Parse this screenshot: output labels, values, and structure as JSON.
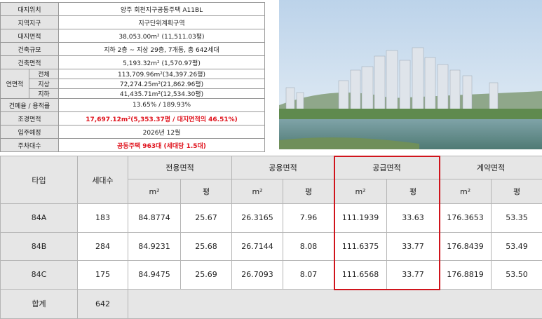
{
  "info": {
    "rows": [
      {
        "label": "대지위치",
        "value": "양주 회천지구공동주택 A11BL"
      },
      {
        "label": "지역지구",
        "value": "지구단위계획구역"
      },
      {
        "label": "대지면적",
        "value": "38,053.00m² (11,511.03평)"
      },
      {
        "label": "건축규모",
        "value": "지하 2층 ~ 지상 29층, 7개동, 총 642세대"
      },
      {
        "label": "건축면적",
        "value": "5,193.32m² (1,570.97평)"
      }
    ],
    "floor_area": {
      "label": "연면적",
      "rows": [
        {
          "label": "전체",
          "value": "113,709.96m²(34,397.26평)"
        },
        {
          "label": "지상",
          "value": "72,274.25m²(21,862.96평)"
        },
        {
          "label": "지하",
          "value": "41,435.71m²(12,534.30평)"
        }
      ]
    },
    "rows2": [
      {
        "label": "건폐율 / 용적률",
        "value": "13.65% / 189.93%"
      },
      {
        "label": "조경면적",
        "value": "17,697.12m²(5,353.37평 / 대지면적의 46.51%)"
      },
      {
        "label": "입주예정",
        "value": "2026년 12월"
      },
      {
        "label": "주차대수",
        "value": "공동주택 963대 (세대당 1.5대)"
      }
    ]
  },
  "table": {
    "header": {
      "type": "타입",
      "households": "세대수",
      "groups": [
        "전용면적",
        "공용면적",
        "공급면적",
        "계약면적"
      ],
      "units": [
        "m²",
        "평"
      ]
    },
    "rows": [
      [
        "84A",
        "183",
        "84.8774",
        "25.67",
        "26.3165",
        "7.96",
        "111.1939",
        "33.63",
        "176.3653",
        "53.35"
      ],
      [
        "84B",
        "284",
        "84.9231",
        "25.68",
        "26.7144",
        "8.08",
        "111.6375",
        "33.77",
        "176.8439",
        "53.49"
      ],
      [
        "84C",
        "175",
        "84.9475",
        "25.69",
        "26.7093",
        "8.07",
        "111.6568",
        "33.77",
        "176.8819",
        "53.50"
      ]
    ],
    "total": [
      "합계",
      "642"
    ]
  }
}
